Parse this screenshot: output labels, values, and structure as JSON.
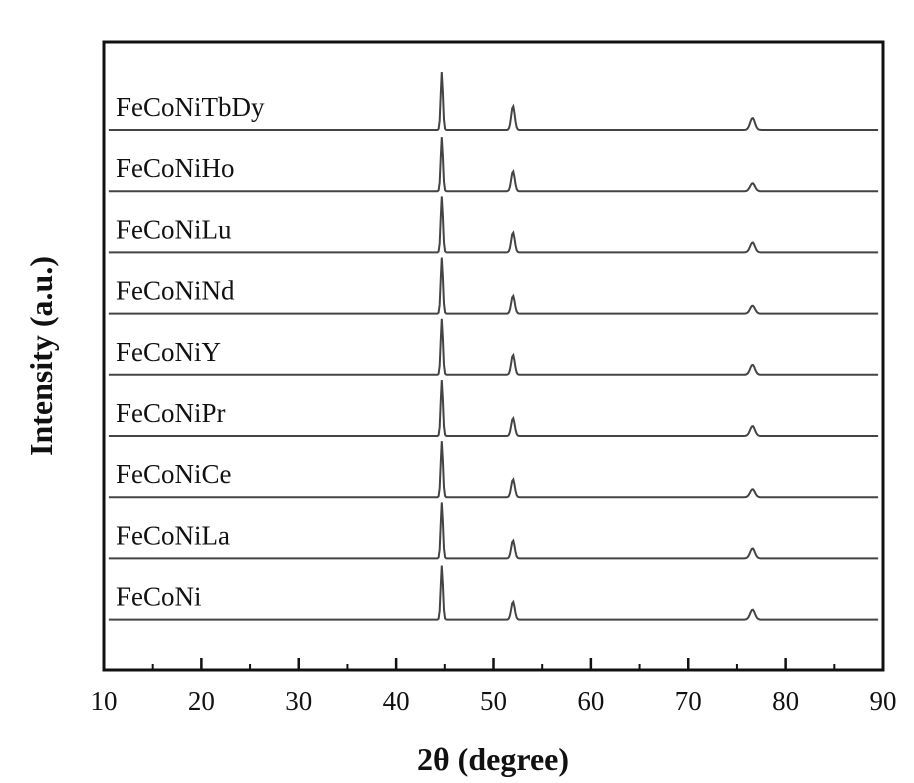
{
  "chart_data": {
    "type": "line",
    "xlabel": "2θ (degree)",
    "ylabel": "Intensity (a.u.)",
    "xlim": [
      10,
      90
    ],
    "xticks": [
      10,
      20,
      30,
      40,
      50,
      60,
      70,
      80,
      90
    ],
    "y_tick_labels": "none",
    "grid": false,
    "legend": "labels above each stacked trace",
    "series": [
      {
        "name": "FeCoNiTbDy",
        "peaks": [
          {
            "x": 44.7,
            "height": 58
          },
          {
            "x": 52.0,
            "height": 24
          },
          {
            "x": 76.6,
            "height": 12
          }
        ]
      },
      {
        "name": "FeCoNiHo",
        "peaks": [
          {
            "x": 44.7,
            "height": 54
          },
          {
            "x": 52.0,
            "height": 20
          },
          {
            "x": 76.6,
            "height": 8
          }
        ]
      },
      {
        "name": "FeCoNiLu",
        "peaks": [
          {
            "x": 44.7,
            "height": 56
          },
          {
            "x": 52.0,
            "height": 20
          },
          {
            "x": 76.6,
            "height": 10
          }
        ]
      },
      {
        "name": "FeCoNiNd",
        "peaks": [
          {
            "x": 44.7,
            "height": 56
          },
          {
            "x": 52.0,
            "height": 18
          },
          {
            "x": 76.6,
            "height": 8
          }
        ]
      },
      {
        "name": "FeCoNiY",
        "peaks": [
          {
            "x": 44.7,
            "height": 56
          },
          {
            "x": 52.0,
            "height": 20
          },
          {
            "x": 76.6,
            "height": 10
          }
        ]
      },
      {
        "name": "FeCoNiPr",
        "peaks": [
          {
            "x": 44.7,
            "height": 56
          },
          {
            "x": 52.0,
            "height": 18
          },
          {
            "x": 76.6,
            "height": 10
          }
        ]
      },
      {
        "name": "FeCoNiCe",
        "peaks": [
          {
            "x": 44.7,
            "height": 56
          },
          {
            "x": 52.0,
            "height": 18
          },
          {
            "x": 76.6,
            "height": 8
          }
        ]
      },
      {
        "name": "FeCoNiLa",
        "peaks": [
          {
            "x": 44.7,
            "height": 56
          },
          {
            "x": 52.0,
            "height": 18
          },
          {
            "x": 76.6,
            "height": 10
          }
        ]
      },
      {
        "name": "FeCoNi",
        "peaks": [
          {
            "x": 44.7,
            "height": 54
          },
          {
            "x": 52.0,
            "height": 18
          },
          {
            "x": 76.6,
            "height": 10
          }
        ]
      }
    ]
  }
}
